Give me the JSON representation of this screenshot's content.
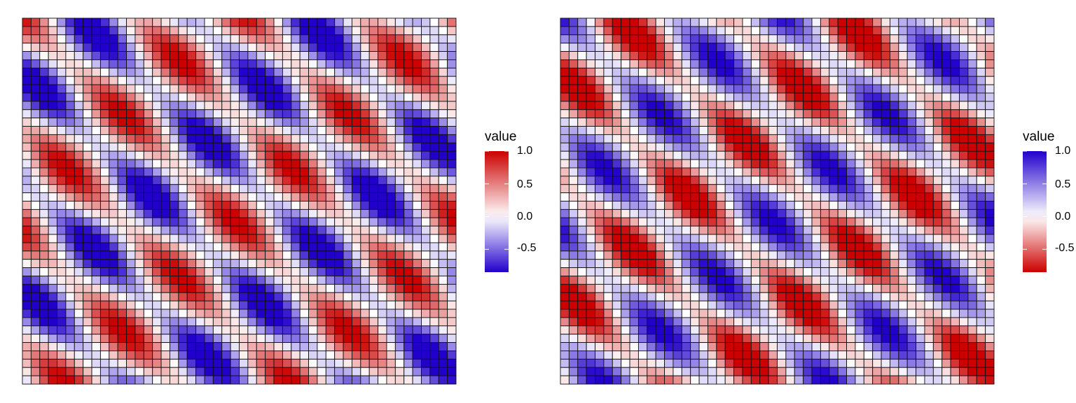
{
  "chart_data": [
    {
      "type": "heatmap",
      "title": "",
      "xlabel": "",
      "ylabel": "",
      "rows": 44,
      "cols": 50,
      "pattern_period": 13,
      "value_range": [
        -0.85,
        1.0
      ],
      "legend": {
        "title": "value",
        "ticks": [
          "1.0",
          "0.5",
          "0.0",
          "-0.5"
        ],
        "tick_values": [
          1.0,
          0.5,
          0.0,
          -0.5
        ],
        "placement": "right",
        "colors": {
          "high": "#CC0000",
          "mid": "#FFFFFF",
          "low": "#2200CC"
        }
      }
    },
    {
      "type": "heatmap",
      "title": "",
      "xlabel": "",
      "ylabel": "",
      "rows": 44,
      "cols": 50,
      "pattern_period": 13,
      "value_range": [
        -0.85,
        1.0
      ],
      "legend": {
        "title": "value",
        "ticks": [
          "1.0",
          "0.5",
          "0.0",
          "-0.5"
        ],
        "tick_values": [
          1.0,
          0.5,
          0.0,
          -0.5
        ],
        "placement": "right",
        "colors": {
          "high": "#2200CC",
          "mid": "#FFFFFF",
          "low": "#CC0000"
        }
      }
    }
  ]
}
